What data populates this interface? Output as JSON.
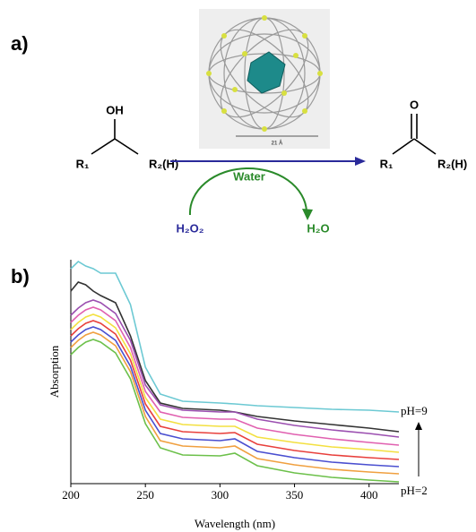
{
  "panel_a": {
    "label": "a)",
    "reactant_oh": "OH",
    "reactant_r1": "R₁",
    "reactant_r2": "R₂(H)",
    "scale_bar": "21 Å",
    "solvent": "Water",
    "oxidant": "H₂O₂",
    "byproduct": "H₂O",
    "product_o": "O",
    "product_r1": "R₁",
    "product_r2": "R₂(H)"
  },
  "chart_data": {
    "type": "line",
    "panel_label": "b)",
    "x_label": "Wavelength (nm)",
    "y_label": "Absorption",
    "x": [
      200,
      205,
      210,
      215,
      220,
      230,
      240,
      250,
      260,
      275,
      300,
      310,
      325,
      350,
      375,
      400,
      420
    ],
    "xlim": [
      200,
      420
    ],
    "xticks": [
      200,
      250,
      300,
      350,
      400
    ],
    "ylim": [
      0,
      1
    ],
    "annotations": {
      "top": "pH=9",
      "bottom": "pH=2"
    },
    "series": [
      {
        "color": "#6cc9d3",
        "values": [
          0.96,
          0.992,
          0.972,
          0.96,
          0.94,
          0.94,
          0.8,
          0.52,
          0.4,
          0.368,
          0.36,
          0.356,
          0.348,
          0.34,
          0.332,
          0.328,
          0.32
        ]
      },
      {
        "color": "#333333",
        "values": [
          0.86,
          0.9,
          0.888,
          0.86,
          0.84,
          0.808,
          0.66,
          0.46,
          0.36,
          0.336,
          0.328,
          0.32,
          0.3,
          0.28,
          0.264,
          0.248,
          0.232
        ]
      },
      {
        "color": "#9b4fb0",
        "values": [
          0.752,
          0.784,
          0.808,
          0.82,
          0.808,
          0.76,
          0.64,
          0.44,
          0.352,
          0.328,
          0.32,
          0.32,
          0.288,
          0.26,
          0.24,
          0.224,
          0.208
        ]
      },
      {
        "color": "#e060b0",
        "values": [
          0.72,
          0.752,
          0.776,
          0.788,
          0.776,
          0.728,
          0.608,
          0.412,
          0.32,
          0.296,
          0.288,
          0.288,
          0.248,
          0.22,
          0.2,
          0.184,
          0.172
        ]
      },
      {
        "color": "#f3e040",
        "values": [
          0.688,
          0.72,
          0.744,
          0.756,
          0.744,
          0.696,
          0.58,
          0.384,
          0.288,
          0.264,
          0.256,
          0.256,
          0.208,
          0.184,
          0.164,
          0.152,
          0.14
        ]
      },
      {
        "color": "#e8403c",
        "values": [
          0.66,
          0.692,
          0.716,
          0.728,
          0.716,
          0.668,
          0.552,
          0.356,
          0.256,
          0.232,
          0.224,
          0.228,
          0.176,
          0.148,
          0.128,
          0.116,
          0.108
        ]
      },
      {
        "color": "#4a4fd0",
        "values": [
          0.632,
          0.664,
          0.688,
          0.7,
          0.688,
          0.64,
          0.524,
          0.328,
          0.224,
          0.2,
          0.192,
          0.2,
          0.144,
          0.116,
          0.096,
          0.084,
          0.076
        ]
      },
      {
        "color": "#f0a040",
        "values": [
          0.608,
          0.64,
          0.664,
          0.676,
          0.664,
          0.616,
          0.5,
          0.3,
          0.192,
          0.168,
          0.16,
          0.168,
          0.112,
          0.084,
          0.064,
          0.052,
          0.044
        ]
      },
      {
        "color": "#6cc04a",
        "values": [
          0.576,
          0.608,
          0.632,
          0.644,
          0.632,
          0.584,
          0.468,
          0.268,
          0.16,
          0.128,
          0.124,
          0.136,
          0.08,
          0.048,
          0.028,
          0.016,
          0.008
        ]
      }
    ]
  }
}
